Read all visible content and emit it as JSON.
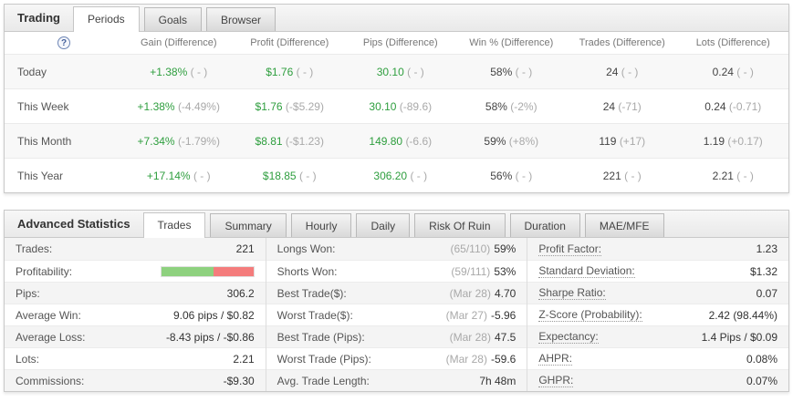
{
  "colors": {
    "value_green": "#2e9e3e",
    "diff_gray": "#a9a9a9",
    "bar_green": "#8ed17f",
    "bar_red": "#f47c7c"
  },
  "trading": {
    "title": "Trading",
    "help_icon": "?",
    "tabs": {
      "periods": "Periods",
      "goals": "Goals",
      "browser": "Browser"
    },
    "columns": {
      "gain": "Gain (Difference)",
      "profit": "Profit (Difference)",
      "pips": "Pips (Difference)",
      "win": "Win % (Difference)",
      "trades": "Trades (Difference)",
      "lots": "Lots (Difference)"
    },
    "rows": [
      {
        "label": "Today",
        "gain": "+1.38%",
        "gain_diff": "( - )",
        "profit": "$1.76",
        "profit_diff": "( - )",
        "pips": "30.10",
        "pips_diff": "( - )",
        "win": "58%",
        "win_diff": "( - )",
        "trades": "24",
        "trades_diff": "( - )",
        "lots": "0.24",
        "lots_diff": "( - )"
      },
      {
        "label": "This Week",
        "gain": "+1.38%",
        "gain_diff": "(-4.49%)",
        "profit": "$1.76",
        "profit_diff": "(-$5.29)",
        "pips": "30.10",
        "pips_diff": "(-89.6)",
        "win": "58%",
        "win_diff": "(-2%)",
        "trades": "24",
        "trades_diff": "(-71)",
        "lots": "0.24",
        "lots_diff": "(-0.71)"
      },
      {
        "label": "This Month",
        "gain": "+7.34%",
        "gain_diff": "(-1.79%)",
        "profit": "$8.81",
        "profit_diff": "(-$1.23)",
        "pips": "149.80",
        "pips_diff": "(-6.6)",
        "win": "59%",
        "win_diff": "(+8%)",
        "trades": "119",
        "trades_diff": "(+17)",
        "lots": "1.19",
        "lots_diff": "(+0.17)"
      },
      {
        "label": "This Year",
        "gain": "+17.14%",
        "gain_diff": "( - )",
        "profit": "$18.85",
        "profit_diff": "( - )",
        "pips": "306.20",
        "pips_diff": "( - )",
        "win": "56%",
        "win_diff": "( - )",
        "trades": "221",
        "trades_diff": "( - )",
        "lots": "2.21",
        "lots_diff": "( - )"
      }
    ]
  },
  "advanced": {
    "title": "Advanced Statistics",
    "tabs": {
      "trades": "Trades",
      "summary": "Summary",
      "hourly": "Hourly",
      "daily": "Daily",
      "risk": "Risk Of Ruin",
      "duration": "Duration",
      "maemfe": "MAE/MFE"
    },
    "left": {
      "trades_label": "Trades:",
      "trades_value": "221",
      "profitability_label": "Profitability:",
      "profitability_green_pct": 57,
      "pips_label": "Pips:",
      "pips_value": "306.2",
      "avg_win_label": "Average Win:",
      "avg_win_value": "9.06 pips / $0.82",
      "avg_loss_label": "Average Loss:",
      "avg_loss_value": "-8.43 pips / -$0.86",
      "lots_label": "Lots:",
      "lots_value": "2.21",
      "commissions_label": "Commissions:",
      "commissions_value": "-$9.30"
    },
    "middle": {
      "longs_label": "Longs Won:",
      "longs_prefix": "(65/110)",
      "longs_value": "59%",
      "shorts_label": "Shorts Won:",
      "shorts_prefix": "(59/111)",
      "shorts_value": "53%",
      "best_usd_label": "Best Trade($):",
      "best_usd_prefix": "(Mar 28)",
      "best_usd_value": "4.70",
      "worst_usd_label": "Worst Trade($):",
      "worst_usd_prefix": "(Mar 27)",
      "worst_usd_value": "-5.96",
      "best_pips_label": "Best Trade (Pips):",
      "best_pips_prefix": "(Mar 28)",
      "best_pips_value": "47.5",
      "worst_pips_label": "Worst Trade (Pips):",
      "worst_pips_prefix": "(Mar 28)",
      "worst_pips_value": "-59.6",
      "length_label": "Avg. Trade Length:",
      "length_value": "7h 48m"
    },
    "right": {
      "pf_label": "Profit Factor:",
      "pf_value": "1.23",
      "sd_label": "Standard Deviation:",
      "sd_value": "$1.32",
      "sharpe_label": "Sharpe Ratio:",
      "sharpe_value": "0.07",
      "zscore_label": "Z-Score (Probability):",
      "zscore_value": "2.42 (98.44%)",
      "expectancy_label": "Expectancy:",
      "expectancy_value": "1.4 Pips / $0.09",
      "ahpr_label": "AHPR:",
      "ahpr_value": "0.08%",
      "ghpr_label": "GHPR:",
      "ghpr_value": "0.07%"
    }
  }
}
